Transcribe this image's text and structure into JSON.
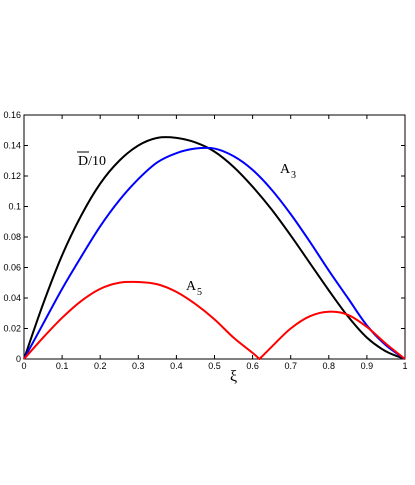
{
  "chart_data": {
    "type": "line",
    "xlabel": "ξ",
    "ylabel": "",
    "xlim": [
      0,
      1
    ],
    "ylim": [
      0,
      0.16
    ],
    "xticks": [
      "0",
      "0.1",
      "0.2",
      "0.3",
      "0.4",
      "0.5",
      "0.6",
      "0.7",
      "0.8",
      "0.9",
      "1"
    ],
    "yticks": [
      "0",
      "0.02",
      "0.04",
      "0.06",
      "0.08",
      "0.1",
      "0.12",
      "0.14",
      "0.16"
    ],
    "grid": false,
    "series": [
      {
        "name": "D/10",
        "label_main": "D",
        "label_rest": "/10",
        "color": "#000000",
        "x": [
          0,
          0.05,
          0.1,
          0.15,
          0.2,
          0.25,
          0.3,
          0.35,
          0.4,
          0.45,
          0.5,
          0.55,
          0.6,
          0.65,
          0.7,
          0.75,
          0.8,
          0.85,
          0.9,
          0.95,
          1
        ],
        "values": [
          0,
          0.036,
          0.068,
          0.094,
          0.115,
          0.13,
          0.14,
          0.145,
          0.145,
          0.142,
          0.136,
          0.126,
          0.113,
          0.098,
          0.081,
          0.063,
          0.045,
          0.028,
          0.014,
          0.005,
          0
        ]
      },
      {
        "name": "A3",
        "label_main": "A",
        "label_sub": "3",
        "color": "#0000ff",
        "x": [
          0,
          0.05,
          0.1,
          0.15,
          0.2,
          0.25,
          0.3,
          0.35,
          0.4,
          0.45,
          0.5,
          0.55,
          0.6,
          0.65,
          0.7,
          0.75,
          0.8,
          0.85,
          0.9,
          0.95,
          1
        ],
        "values": [
          0,
          0.023,
          0.046,
          0.067,
          0.087,
          0.104,
          0.118,
          0.129,
          0.135,
          0.138,
          0.138,
          0.133,
          0.124,
          0.111,
          0.095,
          0.077,
          0.058,
          0.04,
          0.022,
          0.009,
          0
        ]
      },
      {
        "name": "A5",
        "label_main": "A",
        "label_sub": "5",
        "color": "#ff0000",
        "x": [
          0,
          0.05,
          0.1,
          0.15,
          0.2,
          0.25,
          0.3,
          0.35,
          0.4,
          0.45,
          0.5,
          0.55,
          0.6,
          0.618,
          0.65,
          0.7,
          0.75,
          0.8,
          0.85,
          0.9,
          0.95,
          1
        ],
        "values": [
          0,
          0.014,
          0.027,
          0.038,
          0.046,
          0.05,
          0.0505,
          0.049,
          0.044,
          0.036,
          0.026,
          0.014,
          0.004,
          0,
          0.008,
          0.02,
          0.028,
          0.031,
          0.029,
          0.021,
          0.01,
          0
        ]
      }
    ]
  }
}
